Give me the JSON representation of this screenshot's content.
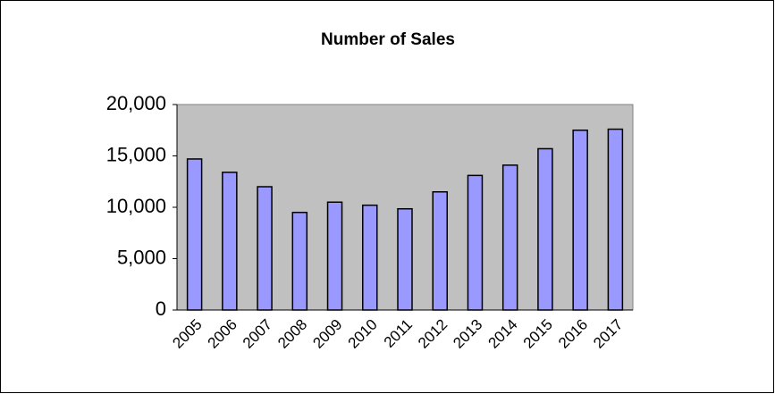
{
  "chart_data": {
    "type": "bar",
    "title": "Number of Sales",
    "categories": [
      "2005",
      "2006",
      "2007",
      "2008",
      "2009",
      "2010",
      "2011",
      "2012",
      "2013",
      "2014",
      "2015",
      "2016",
      "2017"
    ],
    "values": [
      14700,
      13400,
      12000,
      9500,
      10500,
      10200,
      9850,
      11500,
      13100,
      14100,
      15700,
      17500,
      17600
    ],
    "color": "#9999ff",
    "ylim": [
      0,
      20000
    ],
    "yticks": [
      0,
      {
        "value": 5000,
        "label": "5,000"
      },
      {
        "value": 10000,
        "label": "10,000"
      },
      {
        "value": 15000,
        "label": "15,000"
      },
      {
        "value": 20000,
        "label": "20,000"
      }
    ],
    "grid": false
  }
}
